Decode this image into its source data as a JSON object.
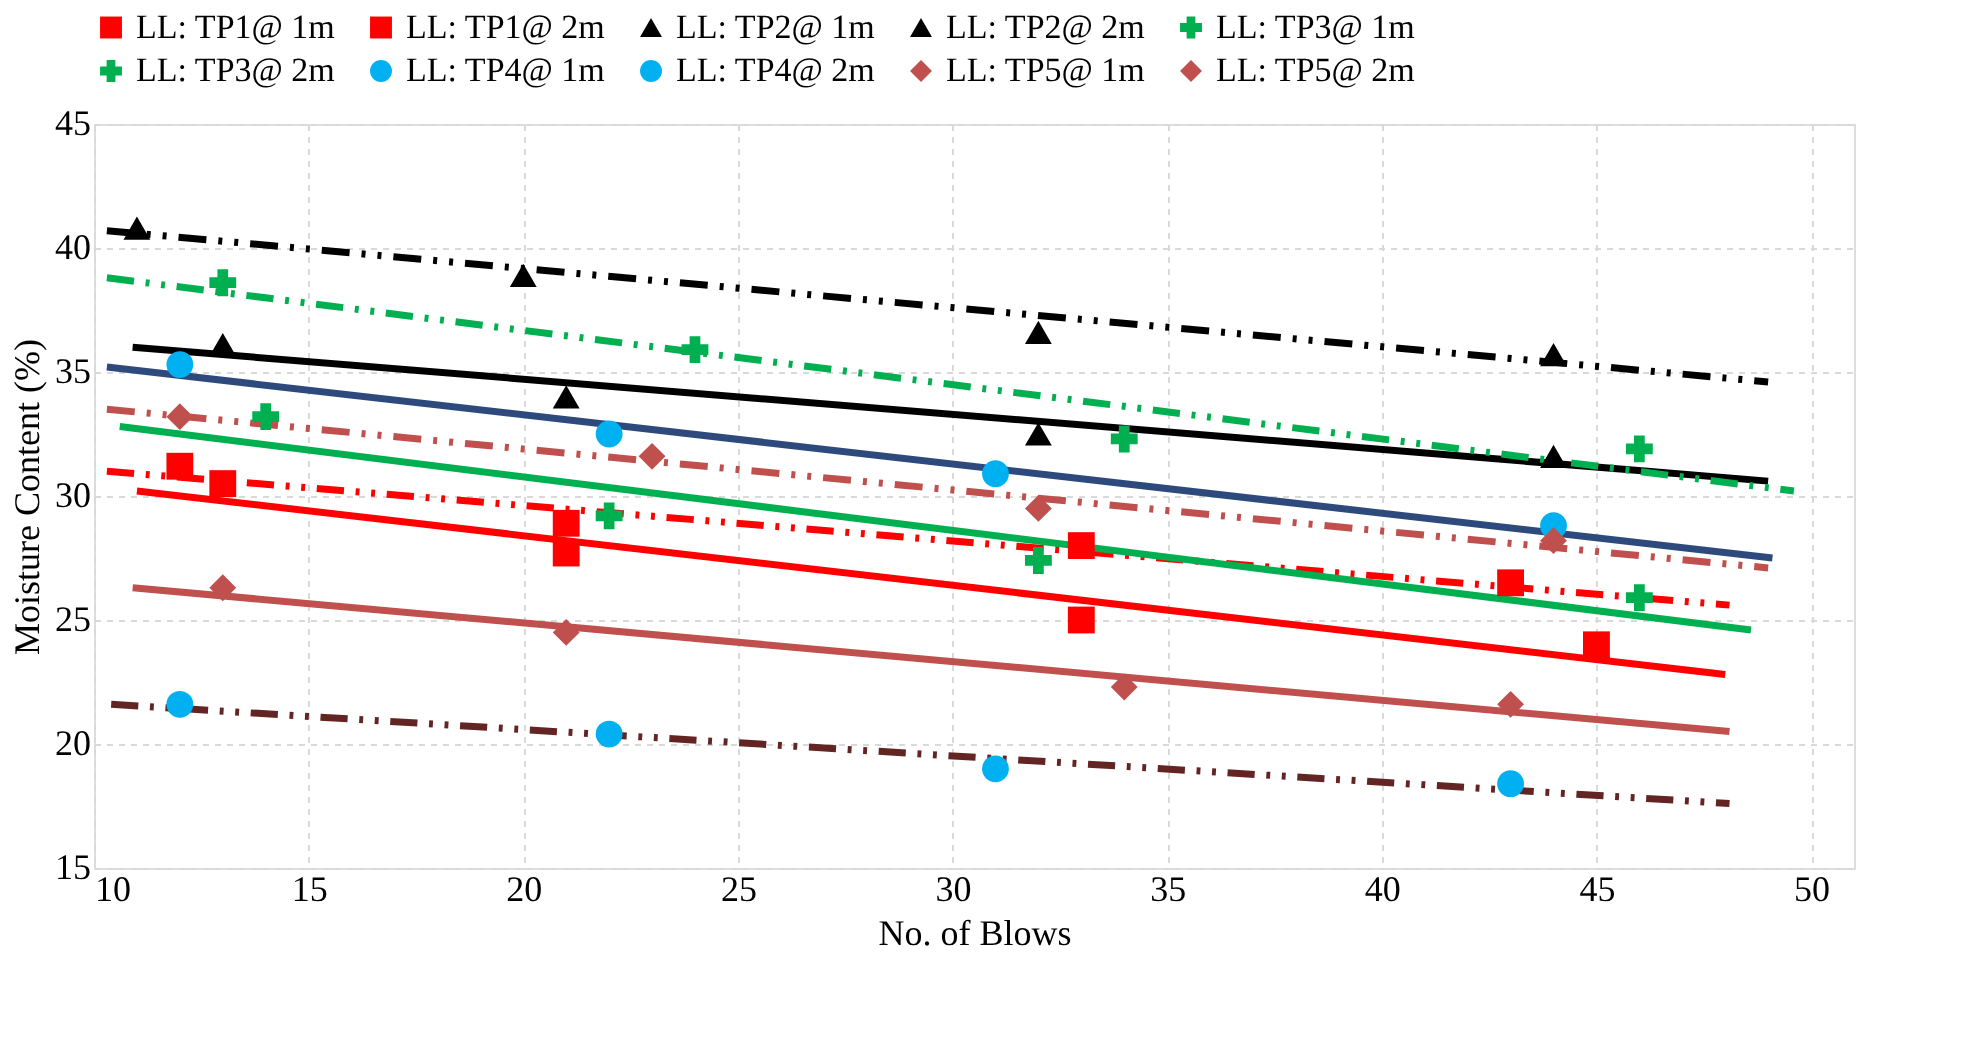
{
  "chart_data": {
    "type": "scatter",
    "xlabel": "No. of Blows",
    "ylabel": "Moisture Content (%)",
    "xlim": [
      10,
      51
    ],
    "xticks": [
      10,
      15,
      20,
      25,
      30,
      35,
      40,
      45,
      50
    ],
    "ylim": [
      15,
      45
    ],
    "yticks": [
      15,
      20,
      25,
      30,
      35,
      40,
      45
    ],
    "grid": true,
    "legend": "top",
    "series": [
      {
        "name": "LL: TP1@ 1m",
        "color": "#ff0000",
        "marker": "square",
        "x": [
          13,
          21,
          33,
          45
        ],
        "values": [
          30.5,
          27.7,
          25.0,
          24.0
        ]
      },
      {
        "name": "LL: TP1@ 2m",
        "color": "#ff0000",
        "marker": "square",
        "x": [
          12,
          21,
          33,
          43
        ],
        "values": [
          31.2,
          28.9,
          28.0,
          26.5
        ]
      },
      {
        "name": "LL: TP2@ 1m",
        "color": "#000000",
        "marker": "triangle",
        "x": [
          13,
          21,
          32,
          44
        ],
        "values": [
          36.1,
          34.0,
          32.5,
          31.6
        ]
      },
      {
        "name": "LL: TP2@ 2m",
        "color": "#000000",
        "marker": "triangle",
        "x": [
          11,
          20,
          32,
          44
        ],
        "values": [
          40.8,
          38.9,
          36.6,
          35.7
        ]
      },
      {
        "name": "LL: TP3@ 1m",
        "color": "#00b050",
        "marker": "cross",
        "x": [
          14,
          22,
          32,
          46
        ],
        "values": [
          33.2,
          29.2,
          27.4,
          25.9
        ]
      },
      {
        "name": "LL: TP3@ 2m",
        "color": "#00b050",
        "marker": "cross",
        "x": [
          13,
          24,
          34,
          46
        ],
        "values": [
          38.6,
          35.9,
          32.3,
          31.9
        ]
      },
      {
        "name": "LL: TP4@ 1m",
        "color": "#00b0f0",
        "marker": "circle",
        "x": [
          12,
          22,
          31,
          44
        ],
        "values": [
          35.3,
          32.5,
          30.9,
          28.8
        ]
      },
      {
        "name": "LL: TP4@ 2m",
        "color": "#00b0f0",
        "marker": "circle",
        "x": [
          12,
          22,
          31,
          43
        ],
        "values": [
          21.6,
          20.4,
          19.0,
          18.4
        ]
      },
      {
        "name": "LL: TP5@ 1m",
        "color": "#c0504d",
        "marker": "diamond",
        "x": [
          13,
          21,
          34,
          43
        ],
        "values": [
          26.3,
          24.5,
          22.3,
          21.6
        ]
      },
      {
        "name": "LL: TP5@ 2m",
        "color": "#c0504d",
        "marker": "diamond",
        "x": [
          12,
          23,
          32,
          44
        ],
        "values": [
          33.2,
          31.6,
          29.5,
          28.2
        ]
      },
      {
        "type": "line",
        "color": "#ff0000",
        "line_style": "solid",
        "x": [
          11.0,
          48.0
        ],
        "values": [
          30.2,
          22.8
        ]
      },
      {
        "type": "line",
        "color": "#ff0000",
        "line_style": "dashed",
        "x": [
          10.3,
          48.1
        ],
        "values": [
          31.0,
          25.6
        ]
      },
      {
        "type": "line",
        "color": "#000000",
        "line_style": "solid",
        "x": [
          10.9,
          49.0
        ],
        "values": [
          36.0,
          30.6
        ]
      },
      {
        "type": "line",
        "color": "#000000",
        "line_style": "dashed",
        "x": [
          10.3,
          49.0
        ],
        "values": [
          40.7,
          34.6
        ]
      },
      {
        "type": "line",
        "color": "#00b050",
        "line_style": "solid",
        "x": [
          10.6,
          48.6
        ],
        "values": [
          32.8,
          24.6
        ]
      },
      {
        "type": "line",
        "color": "#00b050",
        "line_style": "dashed",
        "x": [
          10.3,
          49.6
        ],
        "values": [
          38.8,
          30.2
        ]
      },
      {
        "type": "line",
        "color": "#2e4a7d",
        "line_style": "solid",
        "x": [
          10.3,
          49.1
        ],
        "values": [
          35.2,
          27.5
        ]
      },
      {
        "type": "line",
        "color": "#632523",
        "line_style": "dashed",
        "x": [
          10.4,
          48.1
        ],
        "values": [
          21.6,
          17.6
        ]
      },
      {
        "type": "line",
        "color": "#c0504d",
        "line_style": "solid",
        "x": [
          10.9,
          48.1
        ],
        "values": [
          26.3,
          20.5
        ]
      },
      {
        "type": "line",
        "color": "#c0504d",
        "line_style": "dashed",
        "x": [
          10.3,
          49.0
        ],
        "values": [
          33.5,
          27.1
        ]
      }
    ]
  }
}
